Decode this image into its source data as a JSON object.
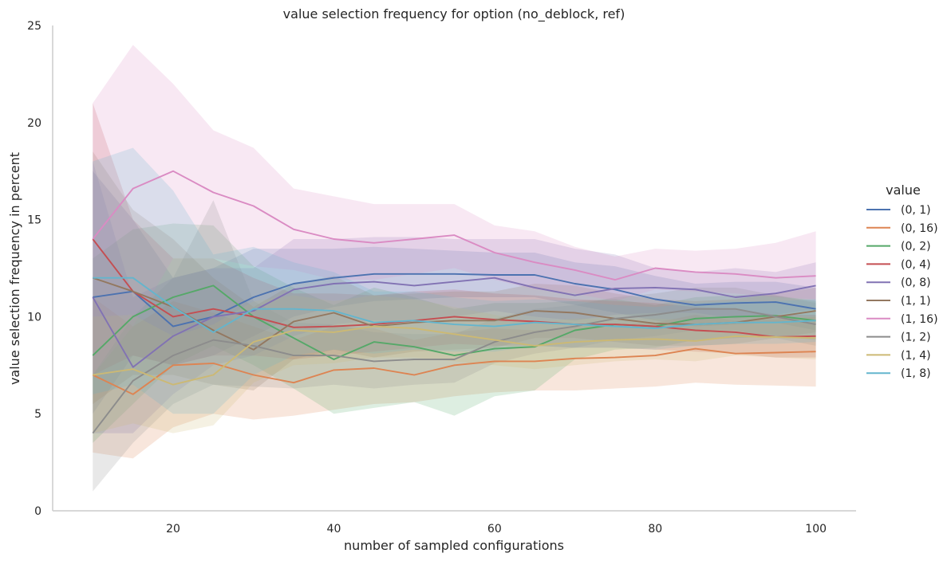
{
  "chart_data": {
    "type": "line",
    "title": "value selection frequency for option (no_deblock, ref)",
    "xlabel": "number of sampled configurations",
    "ylabel": "value selection frequency in percent",
    "xlim": [
      5,
      105
    ],
    "ylim": [
      0,
      25
    ],
    "x_ticks": [
      20,
      40,
      60,
      80,
      100
    ],
    "y_ticks": [
      0,
      5,
      10,
      15,
      20,
      25
    ],
    "grid": false,
    "legend_title": "value",
    "legend_position": "right",
    "x": [
      10,
      15,
      20,
      25,
      30,
      35,
      40,
      45,
      50,
      55,
      60,
      65,
      70,
      75,
      80,
      85,
      90,
      95,
      100
    ],
    "series": [
      {
        "name": "(0, 1)",
        "color": "#4C72B0",
        "values": [
          11.0,
          11.3,
          9.5,
          10.0,
          11.0,
          11.7,
          12.0,
          12.2,
          12.2,
          12.2,
          12.15,
          12.15,
          11.7,
          11.4,
          10.9,
          10.6,
          10.7,
          10.75,
          10.4
        ],
        "lower": [
          5.0,
          8.0,
          7.5,
          8.0,
          9.0,
          10.0,
          10.5,
          10.8,
          10.9,
          11.0,
          11.0,
          11.0,
          10.6,
          10.2,
          9.8,
          9.5,
          9.6,
          9.7,
          9.3
        ],
        "upper": [
          17.5,
          15.0,
          12.0,
          12.5,
          13.5,
          13.5,
          13.5,
          13.6,
          13.5,
          13.4,
          13.3,
          13.3,
          12.8,
          12.6,
          12.1,
          11.7,
          11.8,
          11.8,
          11.5
        ]
      },
      {
        "name": "(0, 16)",
        "color": "#DD8452",
        "values": [
          7.0,
          6.0,
          7.5,
          7.6,
          7.0,
          6.6,
          7.25,
          7.35,
          7.0,
          7.5,
          7.7,
          7.7,
          7.85,
          7.9,
          8.0,
          8.35,
          8.1,
          8.15,
          8.2
        ],
        "lower": [
          3.0,
          2.7,
          4.3,
          5.0,
          4.7,
          4.9,
          5.2,
          5.5,
          5.6,
          5.9,
          6.1,
          6.2,
          6.2,
          6.3,
          6.4,
          6.6,
          6.5,
          6.45,
          6.4
        ],
        "upper": [
          11.0,
          9.5,
          10.8,
          10.2,
          9.5,
          8.8,
          9.5,
          9.4,
          8.8,
          9.2,
          9.4,
          9.3,
          9.5,
          9.6,
          9.7,
          10.1,
          9.8,
          9.85,
          10.0
        ]
      },
      {
        "name": "(0, 2)",
        "color": "#55A868",
        "values": [
          8.0,
          10.0,
          11.0,
          11.6,
          10.0,
          8.9,
          7.8,
          8.7,
          8.45,
          8.0,
          8.35,
          8.45,
          9.3,
          9.6,
          9.5,
          9.9,
          10.0,
          10.05,
          9.8
        ],
        "lower": [
          3.5,
          5.5,
          7.5,
          8.5,
          7.5,
          6.3,
          5.0,
          5.3,
          5.6,
          4.9,
          5.9,
          6.2,
          7.8,
          8.3,
          8.4,
          8.8,
          8.9,
          9.0,
          8.8
        ],
        "upper": [
          13.0,
          14.5,
          14.8,
          14.7,
          12.6,
          11.5,
          10.6,
          11.5,
          11.0,
          10.4,
          10.7,
          10.7,
          10.8,
          10.9,
          10.6,
          11.0,
          11.1,
          11.1,
          10.8
        ]
      },
      {
        "name": "(0, 4)",
        "color": "#C44E52",
        "values": [
          14.0,
          11.3,
          10.0,
          10.4,
          10.0,
          9.45,
          9.5,
          9.6,
          9.8,
          10.0,
          9.85,
          9.75,
          9.6,
          9.6,
          9.5,
          9.3,
          9.2,
          8.95,
          9.0
        ],
        "lower": [
          7.0,
          8.0,
          7.5,
          8.0,
          8.0,
          7.8,
          8.0,
          8.2,
          8.4,
          8.6,
          8.5,
          8.5,
          8.4,
          8.4,
          8.3,
          8.2,
          8.1,
          7.9,
          7.9
        ],
        "upper": [
          21.0,
          15.0,
          13.0,
          13.0,
          12.0,
          11.2,
          11.2,
          11.1,
          11.3,
          11.4,
          11.2,
          11.1,
          10.9,
          10.8,
          10.7,
          10.5,
          10.4,
          10.1,
          10.1
        ]
      },
      {
        "name": "(0, 8)",
        "color": "#8172B3",
        "values": [
          11.0,
          7.4,
          9.0,
          10.0,
          10.3,
          11.4,
          11.7,
          11.8,
          11.6,
          11.8,
          12.0,
          11.5,
          11.1,
          11.45,
          11.5,
          11.4,
          11.0,
          11.2,
          11.6
        ],
        "lower": [
          4.0,
          4.0,
          6.0,
          7.5,
          8.0,
          9.0,
          9.6,
          9.8,
          9.7,
          10.0,
          10.3,
          10.0,
          9.8,
          10.1,
          10.2,
          10.2,
          9.9,
          10.1,
          10.4
        ],
        "upper": [
          18.0,
          11.0,
          12.0,
          12.5,
          12.5,
          14.0,
          14.0,
          14.1,
          14.1,
          14.0,
          14.0,
          14.0,
          13.5,
          13.2,
          12.5,
          12.3,
          12.5,
          12.3,
          12.8
        ]
      },
      {
        "name": "(1, 1)",
        "color": "#937860",
        "values": [
          12.0,
          11.3,
          10.5,
          9.3,
          8.3,
          9.75,
          10.2,
          9.5,
          9.7,
          9.8,
          9.8,
          10.3,
          10.2,
          9.9,
          9.65,
          9.6,
          9.7,
          10.0,
          10.3
        ],
        "lower": [
          5.5,
          7.0,
          7.0,
          6.5,
          6.2,
          7.8,
          8.3,
          7.9,
          8.2,
          8.3,
          8.4,
          8.9,
          8.9,
          8.7,
          8.5,
          8.5,
          8.6,
          8.9,
          9.2
        ],
        "upper": [
          18.5,
          15.5,
          14.0,
          12.0,
          10.5,
          11.7,
          12.1,
          11.1,
          11.2,
          11.3,
          11.3,
          11.7,
          11.6,
          11.2,
          10.9,
          10.8,
          10.9,
          11.2,
          11.5
        ]
      },
      {
        "name": "(1, 16)",
        "color": "#DA8BC3",
        "values": [
          14.0,
          16.6,
          17.5,
          16.4,
          15.7,
          14.5,
          14.0,
          13.8,
          14.0,
          14.2,
          13.3,
          12.8,
          12.4,
          11.9,
          12.5,
          12.3,
          12.2,
          12.0,
          12.1
        ],
        "lower": [
          7.0,
          9.5,
          13.0,
          13.0,
          12.6,
          12.4,
          11.9,
          11.9,
          12.2,
          12.5,
          11.9,
          11.4,
          11.2,
          10.8,
          11.4,
          11.3,
          11.2,
          11.0,
          10.9
        ],
        "upper": [
          21.0,
          24.0,
          22.0,
          19.6,
          18.7,
          16.6,
          16.2,
          15.8,
          15.8,
          15.8,
          14.7,
          14.4,
          13.6,
          13.1,
          13.5,
          13.4,
          13.5,
          13.8,
          14.4
        ]
      },
      {
        "name": "(1, 2)",
        "color": "#8C8C8C",
        "values": [
          4.0,
          6.7,
          8.0,
          8.8,
          8.5,
          8.0,
          8.0,
          7.7,
          7.8,
          7.8,
          8.7,
          9.2,
          9.5,
          9.9,
          10.1,
          10.4,
          10.4,
          10.0,
          9.6
        ],
        "lower": [
          1.0,
          3.5,
          5.5,
          6.5,
          6.4,
          6.3,
          6.5,
          6.3,
          6.5,
          6.6,
          7.6,
          8.1,
          8.4,
          8.8,
          9.0,
          9.3,
          9.3,
          8.9,
          8.5
        ],
        "upper": [
          7.0,
          10.0,
          12.0,
          16.0,
          10.8,
          9.7,
          9.6,
          9.2,
          9.1,
          9.1,
          9.9,
          10.4,
          10.6,
          11.0,
          11.2,
          11.5,
          11.5,
          11.1,
          10.7
        ]
      },
      {
        "name": "(1, 4)",
        "color": "#CCB974",
        "values": [
          7.0,
          7.3,
          6.5,
          7.0,
          8.7,
          9.3,
          9.2,
          9.5,
          9.4,
          9.1,
          8.8,
          8.5,
          8.7,
          8.8,
          8.85,
          8.75,
          9.0,
          8.95,
          8.9
        ],
        "lower": [
          4.0,
          4.5,
          4.0,
          4.4,
          6.6,
          7.5,
          7.6,
          7.9,
          7.9,
          7.7,
          7.5,
          7.3,
          7.5,
          7.7,
          7.8,
          7.7,
          8.0,
          7.9,
          7.8
        ],
        "upper": [
          10.0,
          10.1,
          9.0,
          9.6,
          10.8,
          11.1,
          10.8,
          11.1,
          10.9,
          10.5,
          10.1,
          9.7,
          9.9,
          9.9,
          9.9,
          9.8,
          10.0,
          10.0,
          10.0
        ]
      },
      {
        "name": "(1, 8)",
        "color": "#64B5CD",
        "values": [
          12.0,
          12.0,
          10.5,
          9.2,
          10.4,
          10.4,
          10.3,
          9.7,
          9.8,
          9.6,
          9.5,
          9.7,
          9.6,
          9.5,
          9.4,
          9.6,
          9.7,
          9.7,
          9.8
        ],
        "lower": [
          6.0,
          6.5,
          5.0,
          5.0,
          7.0,
          8.0,
          8.3,
          8.1,
          8.3,
          8.2,
          8.2,
          8.5,
          8.4,
          8.4,
          8.3,
          8.5,
          8.6,
          8.6,
          8.7
        ],
        "upper": [
          18.0,
          18.7,
          16.5,
          13.2,
          13.6,
          12.8,
          12.3,
          11.3,
          11.3,
          11.0,
          10.8,
          10.9,
          10.8,
          10.6,
          10.5,
          10.7,
          10.8,
          10.8,
          10.9
        ]
      }
    ]
  }
}
